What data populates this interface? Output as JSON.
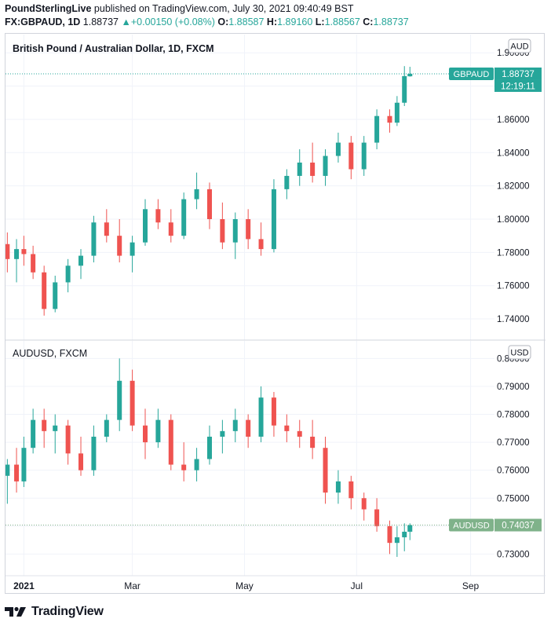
{
  "header": {
    "publisher": "PoundSterlingLive",
    "published_text": "published on TradingView.com, July 30, 2021 09:40:49 BST",
    "symbol": "FX:GBPAUD, 1D",
    "last": "1.88737",
    "change": "+0.00150 (+0.08%)",
    "open_label": "O:",
    "open": "1.88587",
    "high_label": "H:",
    "high": "1.89160",
    "low_label": "L:",
    "low": "1.88567",
    "close_label": "C:",
    "close": "1.88737"
  },
  "footer": {
    "brand": "TradingView",
    "logo_icon": "tradingview-logo-icon"
  },
  "colors": {
    "up": "#26a69a",
    "down": "#ef5350",
    "aud_tag": "#26a69a",
    "usd_tag": "#7fb28a",
    "grid": "#f0f3fa",
    "axis_text": "#131722"
  },
  "chart_data": [
    {
      "type": "candlestick",
      "title": "British Pound / Australian Dollar, 1D, FXCM",
      "currency_badge": "AUD",
      "ylim": [
        1.732,
        1.902
      ],
      "yticks": [
        "1.74000",
        "1.76000",
        "1.78000",
        "1.80000",
        "1.82000",
        "1.84000",
        "1.86000",
        "1.88000",
        "1.90000"
      ],
      "xlim": [
        "2020-12-22",
        "2021-09-14"
      ],
      "grid": true,
      "last_value": 1.88737,
      "last_label": "GBPAUD",
      "last_value_text": "1.88737",
      "countdown": "12:19:11",
      "series": [
        {
          "date": "2020-12-23",
          "o": 1.785,
          "h": 1.792,
          "l": 1.768,
          "c": 1.776
        },
        {
          "date": "2020-12-28",
          "o": 1.776,
          "h": 1.788,
          "l": 1.762,
          "c": 1.782
        },
        {
          "date": "2021-01-01",
          "o": 1.782,
          "h": 1.79,
          "l": 1.772,
          "c": 1.779
        },
        {
          "date": "2021-01-06",
          "o": 1.779,
          "h": 1.784,
          "l": 1.764,
          "c": 1.768
        },
        {
          "date": "2021-01-12",
          "o": 1.768,
          "h": 1.772,
          "l": 1.742,
          "c": 1.746
        },
        {
          "date": "2021-01-18",
          "o": 1.746,
          "h": 1.766,
          "l": 1.744,
          "c": 1.762
        },
        {
          "date": "2021-01-25",
          "o": 1.762,
          "h": 1.776,
          "l": 1.756,
          "c": 1.772
        },
        {
          "date": "2021-02-01",
          "o": 1.772,
          "h": 1.782,
          "l": 1.764,
          "c": 1.778
        },
        {
          "date": "2021-02-08",
          "o": 1.778,
          "h": 1.802,
          "l": 1.774,
          "c": 1.798
        },
        {
          "date": "2021-02-15",
          "o": 1.798,
          "h": 1.806,
          "l": 1.786,
          "c": 1.79
        },
        {
          "date": "2021-02-22",
          "o": 1.79,
          "h": 1.8,
          "l": 1.774,
          "c": 1.778
        },
        {
          "date": "2021-03-01",
          "o": 1.778,
          "h": 1.79,
          "l": 1.768,
          "c": 1.786
        },
        {
          "date": "2021-03-08",
          "o": 1.786,
          "h": 1.812,
          "l": 1.784,
          "c": 1.806
        },
        {
          "date": "2021-03-15",
          "o": 1.806,
          "h": 1.812,
          "l": 1.794,
          "c": 1.798
        },
        {
          "date": "2021-03-22",
          "o": 1.798,
          "h": 1.806,
          "l": 1.786,
          "c": 1.79
        },
        {
          "date": "2021-03-29",
          "o": 1.79,
          "h": 1.816,
          "l": 1.788,
          "c": 1.812
        },
        {
          "date": "2021-04-05",
          "o": 1.812,
          "h": 1.828,
          "l": 1.806,
          "c": 1.818
        },
        {
          "date": "2021-04-12",
          "o": 1.818,
          "h": 1.822,
          "l": 1.794,
          "c": 1.8
        },
        {
          "date": "2021-04-19",
          "o": 1.8,
          "h": 1.81,
          "l": 1.782,
          "c": 1.786
        },
        {
          "date": "2021-04-26",
          "o": 1.786,
          "h": 1.804,
          "l": 1.776,
          "c": 1.8
        },
        {
          "date": "2021-05-03",
          "o": 1.8,
          "h": 1.806,
          "l": 1.782,
          "c": 1.788
        },
        {
          "date": "2021-05-10",
          "o": 1.788,
          "h": 1.798,
          "l": 1.778,
          "c": 1.782
        },
        {
          "date": "2021-05-17",
          "o": 1.782,
          "h": 1.824,
          "l": 1.78,
          "c": 1.818
        },
        {
          "date": "2021-05-24",
          "o": 1.818,
          "h": 1.83,
          "l": 1.812,
          "c": 1.826
        },
        {
          "date": "2021-05-31",
          "o": 1.826,
          "h": 1.842,
          "l": 1.82,
          "c": 1.834
        },
        {
          "date": "2021-06-07",
          "o": 1.834,
          "h": 1.846,
          "l": 1.822,
          "c": 1.826
        },
        {
          "date": "2021-06-14",
          "o": 1.826,
          "h": 1.842,
          "l": 1.82,
          "c": 1.838
        },
        {
          "date": "2021-06-21",
          "o": 1.838,
          "h": 1.852,
          "l": 1.834,
          "c": 1.846
        },
        {
          "date": "2021-06-28",
          "o": 1.846,
          "h": 1.85,
          "l": 1.824,
          "c": 1.83
        },
        {
          "date": "2021-07-05",
          "o": 1.83,
          "h": 1.85,
          "l": 1.826,
          "c": 1.846
        },
        {
          "date": "2021-07-12",
          "o": 1.846,
          "h": 1.866,
          "l": 1.842,
          "c": 1.862
        },
        {
          "date": "2021-07-19",
          "o": 1.862,
          "h": 1.866,
          "l": 1.852,
          "c": 1.858
        },
        {
          "date": "2021-07-23",
          "o": 1.858,
          "h": 1.874,
          "l": 1.856,
          "c": 1.87
        },
        {
          "date": "2021-07-27",
          "o": 1.87,
          "h": 1.892,
          "l": 1.868,
          "c": 1.886
        },
        {
          "date": "2021-07-30",
          "o": 1.88587,
          "h": 1.8916,
          "l": 1.88567,
          "c": 1.88737
        }
      ]
    },
    {
      "type": "candlestick",
      "title": "AUDUSD, FXCM",
      "currency_badge": "USD",
      "ylim": [
        0.7245,
        0.8015
      ],
      "yticks": [
        "0.73000",
        "0.74000",
        "0.75000",
        "0.76000",
        "0.77000",
        "0.78000",
        "0.79000",
        "0.80000"
      ],
      "xlim": [
        "2020-12-22",
        "2021-09-14"
      ],
      "xticks": [
        {
          "date": "2021-01-01",
          "label": "2021",
          "bold": true
        },
        {
          "date": "2021-03-01",
          "label": "Mar"
        },
        {
          "date": "2021-05-01",
          "label": "May"
        },
        {
          "date": "2021-07-01",
          "label": "Jul"
        },
        {
          "date": "2021-09-01",
          "label": "Sep"
        }
      ],
      "grid": true,
      "last_value": 0.74037,
      "last_label": "AUDUSD",
      "last_value_text": "0.74037",
      "series": [
        {
          "date": "2020-12-23",
          "o": 0.758,
          "h": 0.764,
          "l": 0.748,
          "c": 0.762
        },
        {
          "date": "2020-12-28",
          "o": 0.762,
          "h": 0.768,
          "l": 0.752,
          "c": 0.756
        },
        {
          "date": "2021-01-01",
          "o": 0.756,
          "h": 0.772,
          "l": 0.754,
          "c": 0.768
        },
        {
          "date": "2021-01-06",
          "o": 0.768,
          "h": 0.782,
          "l": 0.766,
          "c": 0.778
        },
        {
          "date": "2021-01-12",
          "o": 0.778,
          "h": 0.782,
          "l": 0.768,
          "c": 0.774
        },
        {
          "date": "2021-01-18",
          "o": 0.774,
          "h": 0.78,
          "l": 0.766,
          "c": 0.776
        },
        {
          "date": "2021-01-25",
          "o": 0.776,
          "h": 0.778,
          "l": 0.762,
          "c": 0.766
        },
        {
          "date": "2021-02-01",
          "o": 0.766,
          "h": 0.772,
          "l": 0.758,
          "c": 0.76
        },
        {
          "date": "2021-02-08",
          "o": 0.76,
          "h": 0.776,
          "l": 0.758,
          "c": 0.772
        },
        {
          "date": "2021-02-15",
          "o": 0.772,
          "h": 0.78,
          "l": 0.77,
          "c": 0.778
        },
        {
          "date": "2021-02-22",
          "o": 0.778,
          "h": 0.8,
          "l": 0.774,
          "c": 0.792
        },
        {
          "date": "2021-03-01",
          "o": 0.792,
          "h": 0.796,
          "l": 0.774,
          "c": 0.776
        },
        {
          "date": "2021-03-08",
          "o": 0.776,
          "h": 0.782,
          "l": 0.764,
          "c": 0.77
        },
        {
          "date": "2021-03-15",
          "o": 0.77,
          "h": 0.782,
          "l": 0.768,
          "c": 0.778
        },
        {
          "date": "2021-03-22",
          "o": 0.778,
          "h": 0.78,
          "l": 0.76,
          "c": 0.762
        },
        {
          "date": "2021-03-29",
          "o": 0.762,
          "h": 0.77,
          "l": 0.756,
          "c": 0.76
        },
        {
          "date": "2021-04-05",
          "o": 0.76,
          "h": 0.768,
          "l": 0.756,
          "c": 0.764
        },
        {
          "date": "2021-04-12",
          "o": 0.764,
          "h": 0.776,
          "l": 0.762,
          "c": 0.772
        },
        {
          "date": "2021-04-19",
          "o": 0.772,
          "h": 0.778,
          "l": 0.766,
          "c": 0.774
        },
        {
          "date": "2021-04-26",
          "o": 0.774,
          "h": 0.782,
          "l": 0.77,
          "c": 0.778
        },
        {
          "date": "2021-05-03",
          "o": 0.778,
          "h": 0.78,
          "l": 0.768,
          "c": 0.772
        },
        {
          "date": "2021-05-10",
          "o": 0.772,
          "h": 0.79,
          "l": 0.77,
          "c": 0.786
        },
        {
          "date": "2021-05-17",
          "o": 0.786,
          "h": 0.788,
          "l": 0.772,
          "c": 0.776
        },
        {
          "date": "2021-05-24",
          "o": 0.776,
          "h": 0.78,
          "l": 0.77,
          "c": 0.774
        },
        {
          "date": "2021-05-31",
          "o": 0.774,
          "h": 0.778,
          "l": 0.768,
          "c": 0.772
        },
        {
          "date": "2021-06-07",
          "o": 0.772,
          "h": 0.778,
          "l": 0.764,
          "c": 0.768
        },
        {
          "date": "2021-06-14",
          "o": 0.768,
          "h": 0.772,
          "l": 0.748,
          "c": 0.752
        },
        {
          "date": "2021-06-21",
          "o": 0.752,
          "h": 0.76,
          "l": 0.748,
          "c": 0.756
        },
        {
          "date": "2021-06-28",
          "o": 0.756,
          "h": 0.758,
          "l": 0.746,
          "c": 0.75
        },
        {
          "date": "2021-07-05",
          "o": 0.75,
          "h": 0.752,
          "l": 0.742,
          "c": 0.746
        },
        {
          "date": "2021-07-12",
          "o": 0.746,
          "h": 0.75,
          "l": 0.738,
          "c": 0.74
        },
        {
          "date": "2021-07-19",
          "o": 0.74,
          "h": 0.742,
          "l": 0.73,
          "c": 0.734
        },
        {
          "date": "2021-07-23",
          "o": 0.734,
          "h": 0.74,
          "l": 0.729,
          "c": 0.736
        },
        {
          "date": "2021-07-27",
          "o": 0.736,
          "h": 0.741,
          "l": 0.731,
          "c": 0.738
        },
        {
          "date": "2021-07-30",
          "o": 0.738,
          "h": 0.741,
          "l": 0.735,
          "c": 0.74037
        }
      ]
    }
  ]
}
